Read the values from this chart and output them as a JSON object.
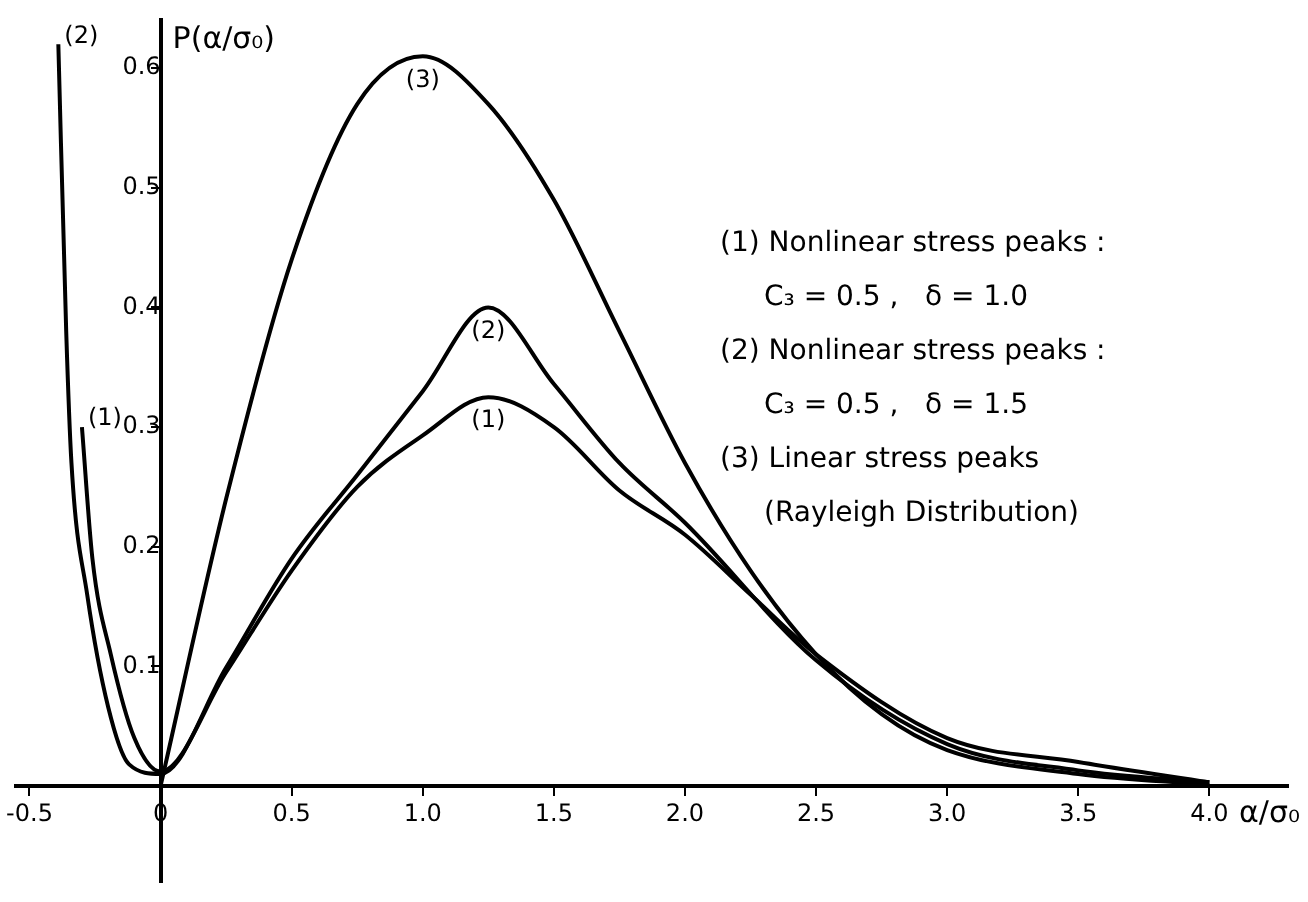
{
  "chart_data": {
    "type": "line",
    "xlabel": "α/σ₀",
    "ylabel": "P(α/σ₀)",
    "xlim": [
      -0.55,
      4.3
    ],
    "ylim": [
      -0.08,
      0.64
    ],
    "xticks": [
      {
        "value": -0.5,
        "label": "-0.5"
      },
      0,
      0.5,
      {
        "value": 1,
        "label": "1.0"
      },
      1.5,
      {
        "value": 2,
        "label": "2.0"
      },
      2.5,
      {
        "value": 3,
        "label": "3.0"
      },
      3.5,
      {
        "value": 4,
        "label": "4.0"
      }
    ],
    "yticks": [
      0.1,
      0.2,
      0.3,
      0.4,
      0.5,
      0.6
    ],
    "grid": false,
    "legend": false,
    "marker": "none",
    "line_style": "solid",
    "series": [
      {
        "name": "(1)",
        "color": "#000000",
        "x": [
          -0.3,
          -0.26,
          -0.19,
          -0.1,
          0,
          0.25,
          0.5,
          0.75,
          1.0,
          1.25,
          1.5,
          1.75,
          2.0,
          2.25,
          2.5,
          3.0,
          3.5,
          4.0
        ],
        "values": [
          0.3,
          0.19,
          0.11,
          0.04,
          0.012,
          0.095,
          0.18,
          0.25,
          0.293,
          0.325,
          0.3,
          0.247,
          0.21,
          0.16,
          0.11,
          0.04,
          0.02,
          0.003
        ]
      },
      {
        "name": "(2)",
        "color": "#000000",
        "x": [
          -0.39,
          -0.36,
          -0.34,
          -0.28,
          -0.2,
          -0.12,
          0,
          0.25,
          0.5,
          0.75,
          1.0,
          1.25,
          1.5,
          1.75,
          2.0,
          2.5,
          3.0,
          3.5,
          4.0
        ],
        "values": [
          0.62,
          0.38,
          0.27,
          0.16,
          0.066,
          0.018,
          0.01,
          0.099,
          0.19,
          0.26,
          0.33,
          0.4,
          0.336,
          0.27,
          0.22,
          0.105,
          0.035,
          0.013,
          0.003
        ]
      },
      {
        "name": "(3)",
        "color": "#000000",
        "x": [
          0,
          0.25,
          0.5,
          0.75,
          1.0,
          1.25,
          1.5,
          1.75,
          2.0,
          2.25,
          2.5,
          2.75,
          3.0,
          3.5,
          4.0
        ],
        "values": [
          0,
          0.24,
          0.44,
          0.57,
          0.61,
          0.57,
          0.49,
          0.38,
          0.27,
          0.18,
          0.11,
          0.06,
          0.03,
          0.01,
          0.001
        ]
      }
    ],
    "annotations": [
      {
        "text": "(1)",
        "x": -0.3,
        "y": 0.3
      },
      {
        "text": "(2)",
        "x": -0.39,
        "y": 0.62
      },
      "(1) Nonlinear stress peaks :",
      "C₃ = 0.5 ,   δ = 1.0",
      "(2) Nonlinear stress peaks :",
      "C₃ = 0.5 ,   δ = 1.5",
      "(3) Linear stress peaks",
      "(Rayleigh Distribution)"
    ]
  }
}
